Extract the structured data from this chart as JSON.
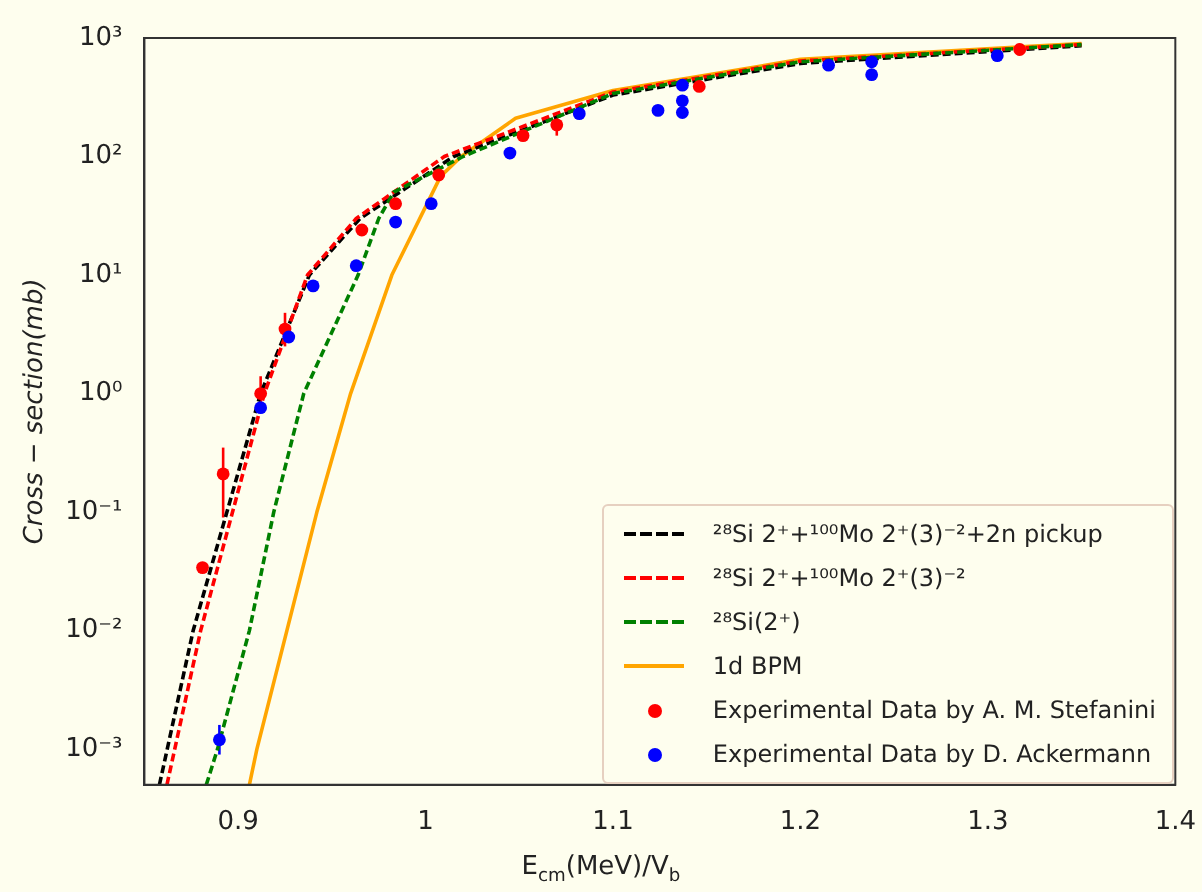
{
  "chart_data": {
    "type": "line",
    "xlabel": "E$_{cm}$(MeV)/V$_{b}$",
    "ylabel": "Cross − section(mb)",
    "log": "y",
    "xlim": [
      0.85,
      1.4
    ],
    "xticks": [
      0.9,
      1.0,
      1.1,
      1.2,
      1.3,
      1.4
    ],
    "ylim": [
      0.0005,
      1000
    ],
    "yticks": [
      {
        "value": 0.001,
        "label": "10⁻³"
      },
      {
        "value": 0.01,
        "label": "10⁻²"
      },
      {
        "value": 0.1,
        "label": "10⁻¹"
      },
      {
        "value": 1,
        "label": "10⁰"
      },
      {
        "value": 10,
        "label": "10¹"
      },
      {
        "value": 100,
        "label": "10²"
      },
      {
        "value": 1000,
        "label": "10³"
      }
    ],
    "grid": false,
    "legend": "bottom right",
    "series": [
      {
        "name": "²⁸Si 2⁺+¹⁰⁰Mo 2⁺(3)⁻²+2n pickup",
        "color": "#000000",
        "line_style": "dashed",
        "marker": "none",
        "x": [
          0.858,
          0.876,
          0.894,
          0.912,
          0.938,
          0.965,
          1.015,
          1.1,
          1.2,
          1.35
        ],
        "values": [
          0.0005,
          0.01,
          0.1,
          1,
          10,
          30,
          100,
          330,
          610,
          860
        ]
      },
      {
        "name": "²⁸Si 2⁺+¹⁰⁰Mo 2⁺(3)⁻²",
        "color": "#ff0000",
        "line_style": "dashed",
        "marker": "none",
        "x": [
          0.862,
          0.88,
          0.897,
          0.914,
          0.937,
          0.963,
          1.01,
          1.1,
          1.2,
          1.35
        ],
        "values": [
          0.0005,
          0.01,
          0.1,
          1,
          10,
          30,
          100,
          350,
          640,
          880
        ]
      },
      {
        "name": "²⁸Si(2⁺)",
        "color": "#008000",
        "line_style": "dashed",
        "marker": "none",
        "x": [
          0.883,
          0.889,
          0.906,
          0.919,
          0.935,
          0.964,
          0.975,
          0.983,
          1.02,
          1.1,
          1.2,
          1.35
        ],
        "values": [
          0.0005,
          0.001,
          0.01,
          0.1,
          1,
          10,
          30,
          50,
          100,
          340,
          630,
          880
        ]
      },
      {
        "name": "1d BPM",
        "color": "#ffa500",
        "line_style": "solid",
        "marker": "none",
        "x": [
          0.906,
          0.91,
          0.926,
          0.942,
          0.96,
          0.982,
          1.008,
          1.019,
          1.048,
          1.1,
          1.2,
          1.35
        ],
        "values": [
          0.0005,
          0.001,
          0.01,
          0.1,
          1,
          10,
          68,
          100,
          210,
          360,
          660,
          900
        ]
      },
      {
        "name": "Experimental Data by A. M. Stefanini",
        "type": "scatter",
        "color": "#ff0000",
        "marker": "circle",
        "x": [
          0.881,
          0.892,
          0.912,
          0.925,
          0.966,
          0.984,
          1.007,
          1.052,
          1.07,
          1.146,
          1.317
        ],
        "values": [
          0.034,
          0.21,
          1.0,
          3.5,
          24,
          40,
          70,
          150,
          185,
          390,
          800
        ],
        "errors": [
          null,
          [
            0.09,
            0.35
          ],
          [
            0.7,
            1.4
          ],
          [
            2.5,
            4.8
          ],
          null,
          null,
          null,
          null,
          [
            150,
            230
          ],
          null,
          null
        ]
      },
      {
        "name": "Experimental Data by D. Ackermann",
        "type": "scatter",
        "color": "#0000ff",
        "marker": "circle",
        "x": [
          0.89,
          0.912,
          0.927,
          0.94,
          0.963,
          0.984,
          1.003,
          1.045,
          1.082,
          1.124,
          1.137,
          1.137,
          1.137,
          1.215,
          1.238,
          1.238,
          1.305
        ],
        "values": [
          0.0012,
          0.76,
          3.0,
          8.1,
          12,
          28,
          40,
          107,
          230,
          245,
          400,
          295,
          235,
          590,
          630,
          490,
          710
        ],
        "errors": [
          [
            0.0009,
            0.0016
          ],
          null,
          null,
          null,
          null,
          null,
          null,
          null,
          null,
          null,
          null,
          null,
          null,
          null,
          null,
          null,
          null
        ]
      }
    ]
  }
}
